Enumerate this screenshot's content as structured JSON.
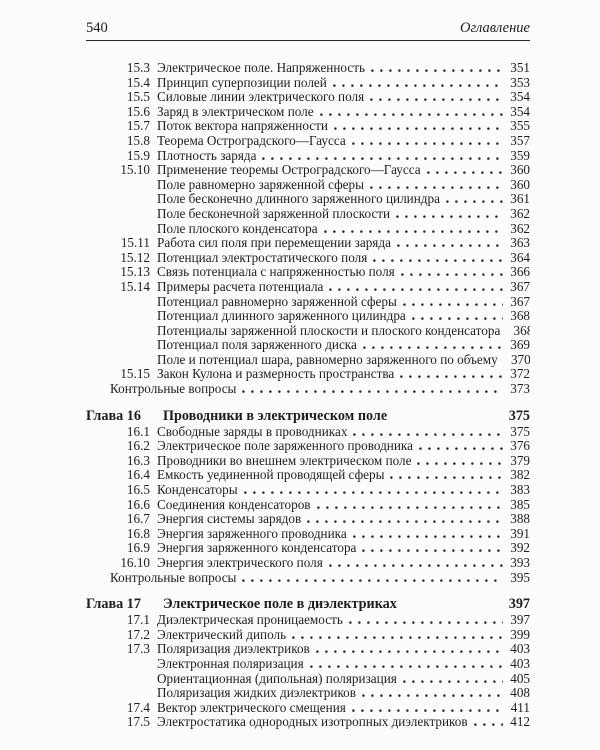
{
  "header": {
    "page_number": "540",
    "running_title": "Оглавление"
  },
  "toc": {
    "blocks": [
      {
        "chapter": null,
        "entries": [
          {
            "kind": "numbered",
            "num": "15.3",
            "title": "Электрическое поле. Напряженность",
            "page": "351"
          },
          {
            "kind": "numbered",
            "num": "15.4",
            "title": "Принцип суперпозиции полей",
            "page": "353"
          },
          {
            "kind": "numbered",
            "num": "15.5",
            "title": "Силовые линии электрического поля",
            "page": "354"
          },
          {
            "kind": "numbered",
            "num": "15.6",
            "title": "Заряд в электрическом поле",
            "page": "354"
          },
          {
            "kind": "numbered",
            "num": "15.7",
            "title": "Поток вектора напряженности",
            "page": "355"
          },
          {
            "kind": "numbered",
            "num": "15.8",
            "title": "Теорема Остроградского—Гаусса",
            "page": "357"
          },
          {
            "kind": "numbered",
            "num": "15.9",
            "title": "Плотность заряда",
            "page": "359"
          },
          {
            "kind": "numbered",
            "num": "15.10",
            "title": "Применение теоремы Остроградского—Гаусса",
            "page": "360"
          },
          {
            "kind": "sub",
            "num": "",
            "title": "Поле равномерно заряженной сферы",
            "page": "360"
          },
          {
            "kind": "sub",
            "num": "",
            "title": "Поле бесконечно длинного заряженного цилиндра",
            "page": "361"
          },
          {
            "kind": "sub",
            "num": "",
            "title": "Поле бесконечной заряженной плоскости",
            "page": "362"
          },
          {
            "kind": "sub",
            "num": "",
            "title": "Поле плоского конденсатора",
            "page": "362"
          },
          {
            "kind": "numbered",
            "num": "15.11",
            "title": "Работа сил поля при перемещении заряда",
            "page": "363"
          },
          {
            "kind": "numbered",
            "num": "15.12",
            "title": "Потенциал электростатического поля",
            "page": "364"
          },
          {
            "kind": "numbered",
            "num": "15.13",
            "title": "Связь потенциала с напряженностью поля",
            "page": "366"
          },
          {
            "kind": "numbered",
            "num": "15.14",
            "title": "Примеры расчета потенциала",
            "page": "367"
          },
          {
            "kind": "sub",
            "num": "",
            "title": "Потенциал равномерно заряженной сферы",
            "page": "367"
          },
          {
            "kind": "sub",
            "num": "",
            "title": "Потенциал длинного заряженного цилиндра",
            "page": "368"
          },
          {
            "kind": "sub",
            "num": "",
            "title": "Потенциалы заряженной плоскости и плоского конденсатора",
            "page": "368"
          },
          {
            "kind": "sub",
            "num": "",
            "title": "Потенциал поля заряженного диска",
            "page": "369"
          },
          {
            "kind": "sub",
            "num": "",
            "title": "Поле и потенциал шара, равномерно заряженного по объему",
            "page": "370"
          },
          {
            "kind": "numbered",
            "num": "15.15",
            "title": "Закон Кулона и размерность пространства",
            "page": "372"
          },
          {
            "kind": "plain",
            "num": "",
            "title": "Контрольные вопросы",
            "page": "373"
          }
        ]
      },
      {
        "chapter": {
          "label": "Глава 16",
          "title": "Проводники в электрическом поле",
          "page": "375"
        },
        "entries": [
          {
            "kind": "numbered",
            "num": "16.1",
            "title": "Свободные заряды в проводниках",
            "page": "375"
          },
          {
            "kind": "numbered",
            "num": "16.2",
            "title": "Электрическое поле заряженного проводника",
            "page": "376"
          },
          {
            "kind": "numbered",
            "num": "16.3",
            "title": "Проводники во внешнем электрическом поле",
            "page": "379"
          },
          {
            "kind": "numbered",
            "num": "16.4",
            "title": "Емкость уединенной проводящей сферы",
            "page": "382"
          },
          {
            "kind": "numbered",
            "num": "16.5",
            "title": "Конденсаторы",
            "page": "383"
          },
          {
            "kind": "numbered",
            "num": "16.6",
            "title": "Соединения конденсаторов",
            "page": "385"
          },
          {
            "kind": "numbered",
            "num": "16.7",
            "title": "Энергия системы зарядов",
            "page": "388"
          },
          {
            "kind": "numbered",
            "num": "16.8",
            "title": "Энергия заряженного проводника",
            "page": "391"
          },
          {
            "kind": "numbered",
            "num": "16.9",
            "title": "Энергия заряженного конденсатора",
            "page": "392"
          },
          {
            "kind": "numbered",
            "num": "16.10",
            "title": "Энергия электрического поля",
            "page": "393"
          },
          {
            "kind": "plain",
            "num": "",
            "title": "Контрольные вопросы",
            "page": "395"
          }
        ]
      },
      {
        "chapter": {
          "label": "Глава 17",
          "title": "Электрическое поле в диэлектриках",
          "page": "397"
        },
        "entries": [
          {
            "kind": "numbered",
            "num": "17.1",
            "title": "Диэлектрическая проницаемость",
            "page": "397"
          },
          {
            "kind": "numbered",
            "num": "17.2",
            "title": "Электрический диполь",
            "page": "399"
          },
          {
            "kind": "numbered",
            "num": "17.3",
            "title": "Поляризация диэлектриков",
            "page": "403"
          },
          {
            "kind": "sub",
            "num": "",
            "title": "Электронная поляризация",
            "page": "403"
          },
          {
            "kind": "sub",
            "num": "",
            "title": "Ориентационная (дипольная) поляризация",
            "page": "405"
          },
          {
            "kind": "sub",
            "num": "",
            "title": "Поляризация жидких диэлектриков",
            "page": "408"
          },
          {
            "kind": "numbered",
            "num": "17.4",
            "title": "Вектор электрического смещения",
            "page": "411"
          },
          {
            "kind": "numbered",
            "num": "17.5",
            "title": "Электростатика однородных изотропных диэлектриков",
            "page": "412"
          }
        ]
      }
    ]
  }
}
